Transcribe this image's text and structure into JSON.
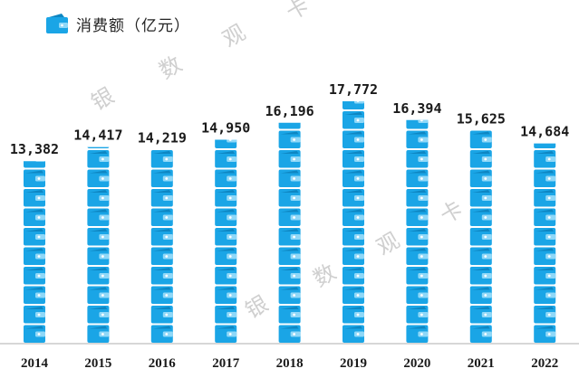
{
  "legend": {
    "label": "消费额（亿元）",
    "icon": "wallet-icon"
  },
  "watermark": {
    "chars": [
      "银",
      "数",
      "观",
      "卡"
    ]
  },
  "colors": {
    "bar": "#1AA5E6",
    "bar_dark": "#0E86C2",
    "bar_light": "#8FD8F8",
    "axis": "#BFBFBF",
    "label": "#1a1a1a"
  },
  "chart_data": {
    "type": "bar",
    "title": "",
    "xlabel": "",
    "ylabel": "消费额（亿元）",
    "categories": [
      "2014",
      "2015",
      "2016",
      "2017",
      "2018",
      "2019",
      "2020",
      "2021",
      "2022"
    ],
    "values": [
      13382,
      14417,
      14219,
      14950,
      16196,
      17772,
      16394,
      15625,
      14684
    ],
    "value_labels": [
      "13,382",
      "14,417",
      "14,219",
      "14,950",
      "16,196",
      "17,772",
      "16,394",
      "15,625",
      "14,684"
    ],
    "ylim": [
      0,
      18000
    ],
    "grid": false,
    "legend": "top-left"
  }
}
